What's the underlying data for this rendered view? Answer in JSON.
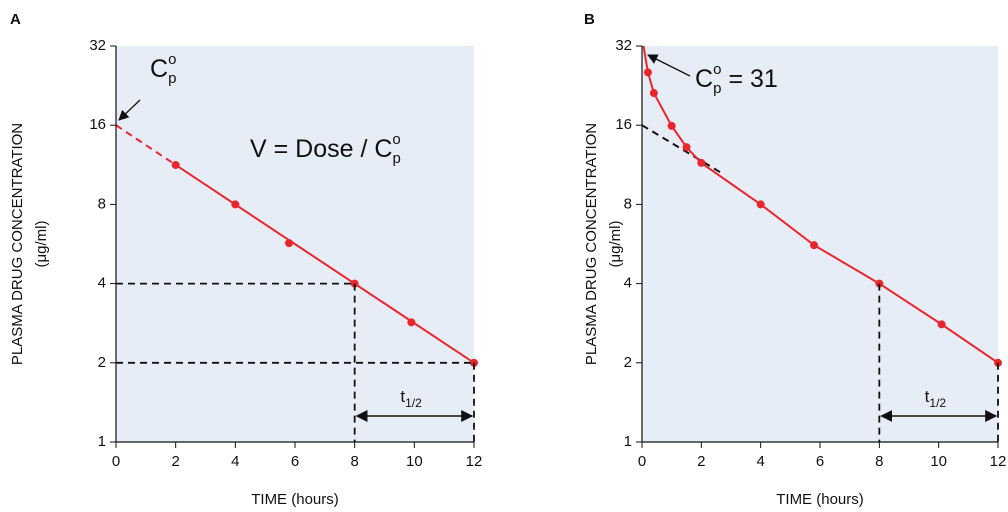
{
  "chart_data": [
    {
      "type": "line",
      "panel": "A",
      "log_y": true,
      "ylabel": "PLASMA DRUG CONCENTRATION",
      "ylabel_unit": "(μg/ml)",
      "xlabel": "TIME (hours)",
      "xlim": [
        0,
        12
      ],
      "xticks": [
        0,
        2,
        4,
        6,
        8,
        10,
        12
      ],
      "ylim": [
        1,
        32
      ],
      "yticks": [
        1,
        2,
        4,
        8,
        16,
        32
      ],
      "series": [
        {
          "style": "dashed",
          "color": "#e8262b",
          "x": [
            0,
            2
          ],
          "values": [
            16,
            11.3
          ]
        },
        {
          "style": "solid",
          "color": "#e8262b",
          "x": [
            2,
            12
          ],
          "values": [
            11.3,
            2
          ]
        },
        {
          "style": "points",
          "color": "#e8262b",
          "x": [
            2,
            4,
            5.8,
            8,
            9.9,
            12
          ],
          "values": [
            11.3,
            8,
            5.7,
            4,
            2.85,
            2
          ]
        },
        {
          "style": "guide",
          "color": "#111111",
          "x": [
            0,
            8
          ],
          "values": [
            4,
            4
          ]
        },
        {
          "style": "guide",
          "color": "#111111",
          "x": [
            0,
            12
          ],
          "values": [
            2,
            2
          ]
        },
        {
          "style": "guide",
          "color": "#111111",
          "x": [
            8,
            8
          ],
          "values": [
            4,
            1
          ]
        },
        {
          "style": "guide",
          "color": "#111111",
          "x": [
            12,
            12
          ],
          "values": [
            2,
            1
          ]
        }
      ],
      "annotations": [
        {
          "text": "C",
          "sup": "o",
          "sub": "p"
        },
        {
          "text": "V = Dose / C",
          "sup": "o",
          "sub": "p"
        }
      ],
      "half_life": {
        "text": "t",
        "sub": "1/2",
        "x": [
          8,
          12
        ]
      }
    },
    {
      "type": "line",
      "panel": "B",
      "log_y": true,
      "ylabel": "PLASMA DRUG CONCENTRATION",
      "ylabel_unit": "(μg/ml)",
      "xlabel": "TIME (hours)",
      "xlim": [
        0,
        12
      ],
      "xticks": [
        0,
        2,
        4,
        6,
        8,
        10,
        12
      ],
      "ylim": [
        1,
        32
      ],
      "yticks": [
        1,
        2,
        4,
        8,
        16,
        32
      ],
      "series": [
        {
          "style": "dashed",
          "color": "#111111",
          "x": [
            0,
            2.7
          ],
          "values": [
            16,
            10.5
          ]
        },
        {
          "style": "solid",
          "color": "#e8262b",
          "x": [
            0.05,
            0.2,
            0.4,
            1,
            1.5,
            2,
            4,
            5.8,
            8,
            10.1,
            12
          ],
          "values": [
            32,
            25.4,
            21.2,
            15.9,
            13.2,
            11.5,
            8,
            5.6,
            4,
            2.8,
            2
          ]
        },
        {
          "style": "points",
          "color": "#e8262b",
          "x": [
            0.2,
            0.4,
            1,
            1.5,
            2,
            4,
            5.8,
            8,
            10.1,
            12
          ],
          "values": [
            25.4,
            21.2,
            15.9,
            13.2,
            11.5,
            8,
            5.6,
            4,
            2.8,
            2
          ]
        },
        {
          "style": "guide",
          "color": "#111111",
          "x": [
            8,
            8
          ],
          "values": [
            4,
            1
          ]
        },
        {
          "style": "guide",
          "color": "#111111",
          "x": [
            12,
            12
          ],
          "values": [
            2,
            1
          ]
        }
      ],
      "annotations": [
        {
          "text": "C",
          "sup": "o",
          "sub": "p",
          "after": " = 31"
        }
      ],
      "half_life": {
        "text": "t",
        "sub": "1/2",
        "x": [
          8,
          12
        ]
      }
    }
  ]
}
